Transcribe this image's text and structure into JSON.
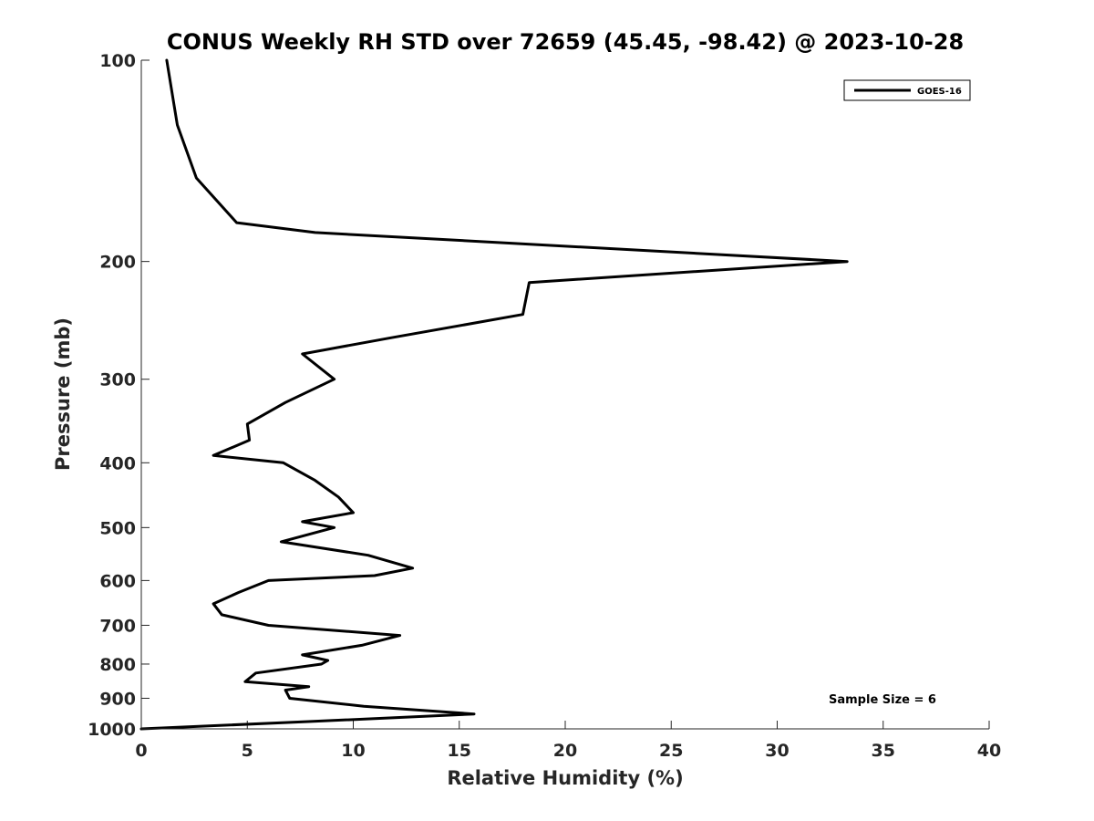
{
  "chart_data": {
    "type": "line",
    "title": "CONUS Weekly RH STD over 72659 (45.45, -98.42) @ 2023-10-28",
    "xlabel": "Relative Humidity (%)",
    "ylabel": "Pressure (mb)",
    "xlim": [
      0,
      40
    ],
    "ylim": [
      100,
      1000
    ],
    "yscale": "log",
    "y_reversed": true,
    "grid": false,
    "x_ticks": [
      0,
      5,
      10,
      15,
      20,
      25,
      30,
      35,
      40
    ],
    "x_tick_labels": [
      "0",
      "5",
      "10",
      "15",
      "20",
      "25",
      "30",
      "35",
      "40"
    ],
    "y_ticks": [
      100,
      200,
      300,
      400,
      500,
      600,
      700,
      800,
      900,
      1000
    ],
    "y_tick_labels": [
      "100",
      "200",
      "300",
      "400",
      "500",
      "600",
      "700",
      "800",
      "900",
      "1000"
    ],
    "legend": {
      "position": "top-right",
      "entries": [
        "GOES-16"
      ]
    },
    "annotation": "Sample Size = 6",
    "series": [
      {
        "name": "GOES-16",
        "color": "#000000",
        "points": [
          [
            1.2,
            100
          ],
          [
            1.7,
            125
          ],
          [
            2.6,
            150
          ],
          [
            4.5,
            175
          ],
          [
            8.2,
            181
          ],
          [
            33.3,
            200
          ],
          [
            18.3,
            215
          ],
          [
            18.0,
            240
          ],
          [
            11.8,
            260
          ],
          [
            7.6,
            275
          ],
          [
            9.1,
            300
          ],
          [
            6.8,
            325
          ],
          [
            5.0,
            350
          ],
          [
            5.1,
            370
          ],
          [
            3.4,
            390
          ],
          [
            6.7,
            400
          ],
          [
            8.2,
            425
          ],
          [
            9.3,
            450
          ],
          [
            10.0,
            475
          ],
          [
            7.6,
            490
          ],
          [
            9.1,
            500
          ],
          [
            6.6,
            525
          ],
          [
            10.7,
            550
          ],
          [
            12.8,
            575
          ],
          [
            11.0,
            590
          ],
          [
            6.0,
            600
          ],
          [
            4.6,
            625
          ],
          [
            3.4,
            650
          ],
          [
            3.8,
            675
          ],
          [
            6.0,
            700
          ],
          [
            12.2,
            725
          ],
          [
            10.4,
            750
          ],
          [
            7.6,
            775
          ],
          [
            8.8,
            790
          ],
          [
            8.5,
            800
          ],
          [
            5.4,
            825
          ],
          [
            4.9,
            850
          ],
          [
            7.9,
            865
          ],
          [
            6.8,
            875
          ],
          [
            7.0,
            900
          ],
          [
            10.5,
            925
          ],
          [
            15.7,
            950
          ],
          [
            8.0,
            975
          ],
          [
            0.0,
            1000
          ]
        ]
      }
    ]
  }
}
